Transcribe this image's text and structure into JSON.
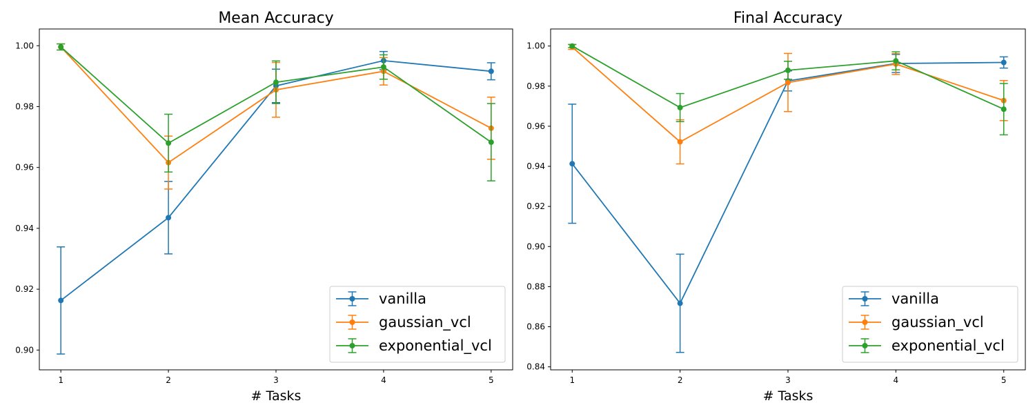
{
  "chart_data": [
    {
      "type": "line",
      "title": "Mean Accuracy",
      "xlabel": "# Tasks",
      "ylabel": "",
      "x": [
        1,
        2,
        3,
        4,
        5
      ],
      "xlim": [
        0.8,
        5.2
      ],
      "ylim": [
        0.8935,
        1.0055
      ],
      "yticks": [
        0.9,
        0.92,
        0.94,
        0.96,
        0.98,
        1.0
      ],
      "yticklabels": [
        "0.90",
        "0.92",
        "0.94",
        "0.96",
        "0.98",
        "1.00"
      ],
      "xticklabels": [
        "1",
        "2",
        "3",
        "4",
        "5"
      ],
      "grid": false,
      "legend": "lower-right",
      "series": [
        {
          "name": "vanilla",
          "color": "#1f77b4",
          "values": [
            0.9163,
            0.9435,
            0.9868,
            0.9951,
            0.9916
          ],
          "errors": [
            0.0176,
            0.0119,
            0.0055,
            0.003,
            0.0028
          ]
        },
        {
          "name": "gaussian_vcl",
          "color": "#ff7f0e",
          "values": [
            0.9996,
            0.9616,
            0.9855,
            0.9916,
            0.9729
          ],
          "errors": [
            0.001,
            0.0087,
            0.009,
            0.0045,
            0.0102
          ]
        },
        {
          "name": "exponential_vcl",
          "color": "#2ca02c",
          "values": [
            0.9996,
            0.968,
            0.988,
            0.993,
            0.9683
          ],
          "errors": [
            0.001,
            0.0095,
            0.007,
            0.004,
            0.0127
          ]
        }
      ]
    },
    {
      "type": "line",
      "title": "Final Accuracy",
      "xlabel": "# Tasks",
      "ylabel": "",
      "x": [
        1,
        2,
        3,
        4,
        5
      ],
      "xlim": [
        0.8,
        5.2
      ],
      "ylim": [
        0.8385,
        1.0085
      ],
      "yticks": [
        0.84,
        0.86,
        0.88,
        0.9,
        0.92,
        0.94,
        0.96,
        0.98,
        1.0
      ],
      "yticklabels": [
        "0.84",
        "0.86",
        "0.88",
        "0.90",
        "0.92",
        "0.94",
        "0.96",
        "0.98",
        "1.00"
      ],
      "xticklabels": [
        "1",
        "2",
        "3",
        "4",
        "5"
      ],
      "grid": false,
      "legend": "lower-right",
      "series": [
        {
          "name": "vanilla",
          "color": "#1f77b4",
          "values": [
            0.9413,
            0.8717,
            0.9826,
            0.9913,
            0.9918
          ],
          "errors": [
            0.0297,
            0.0245,
            0.005,
            0.0045,
            0.0028
          ]
        },
        {
          "name": "gaussian_vcl",
          "color": "#ff7f0e",
          "values": [
            0.9995,
            0.9522,
            0.9818,
            0.991,
            0.9728
          ],
          "errors": [
            0.0012,
            0.011,
            0.0145,
            0.0052,
            0.01
          ]
        },
        {
          "name": "exponential_vcl",
          "color": "#2ca02c",
          "values": [
            1.0,
            0.9693,
            0.9879,
            0.9926,
            0.9685
          ],
          "errors": [
            0.0008,
            0.007,
            0.0045,
            0.0045,
            0.0128
          ]
        }
      ]
    }
  ]
}
